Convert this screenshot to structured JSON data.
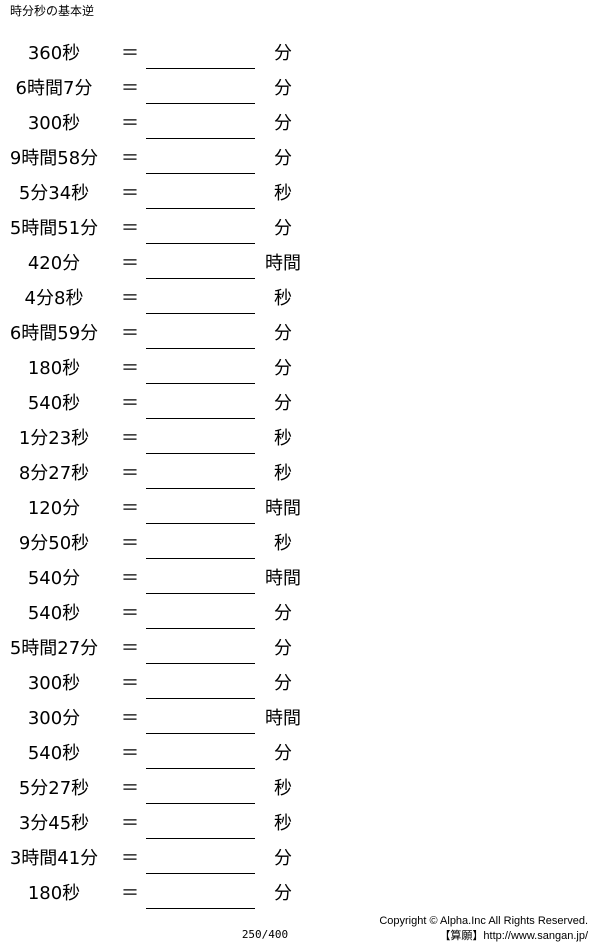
{
  "title": "時分秒の基本逆",
  "equals_sign": "＝",
  "problems": [
    {
      "question": "360秒",
      "unit": "分"
    },
    {
      "question": "6時間7分",
      "unit": "分"
    },
    {
      "question": "300秒",
      "unit": "分"
    },
    {
      "question": "9時間58分",
      "unit": "分"
    },
    {
      "question": "5分34秒",
      "unit": "秒"
    },
    {
      "question": "5時間51分",
      "unit": "分"
    },
    {
      "question": "420分",
      "unit": "時間"
    },
    {
      "question": "4分8秒",
      "unit": "秒"
    },
    {
      "question": "6時間59分",
      "unit": "分"
    },
    {
      "question": "180秒",
      "unit": "分"
    },
    {
      "question": "540秒",
      "unit": "分"
    },
    {
      "question": "1分23秒",
      "unit": "秒"
    },
    {
      "question": "8分27秒",
      "unit": "秒"
    },
    {
      "question": "120分",
      "unit": "時間"
    },
    {
      "question": "9分50秒",
      "unit": "秒"
    },
    {
      "question": "540分",
      "unit": "時間"
    },
    {
      "question": "540秒",
      "unit": "分"
    },
    {
      "question": "5時間27分",
      "unit": "分"
    },
    {
      "question": "300秒",
      "unit": "分"
    },
    {
      "question": "300分",
      "unit": "時間"
    },
    {
      "question": "540秒",
      "unit": "分"
    },
    {
      "question": "5分27秒",
      "unit": "秒"
    },
    {
      "question": "3分45秒",
      "unit": "秒"
    },
    {
      "question": "3時間41分",
      "unit": "分"
    },
    {
      "question": "180秒",
      "unit": "分"
    }
  ],
  "footer": {
    "page_number": "250/400",
    "copyright": "Copyright © Alpha.Inc All Rights Reserved.",
    "site": "【算願】http://www.sangan.jp/"
  }
}
